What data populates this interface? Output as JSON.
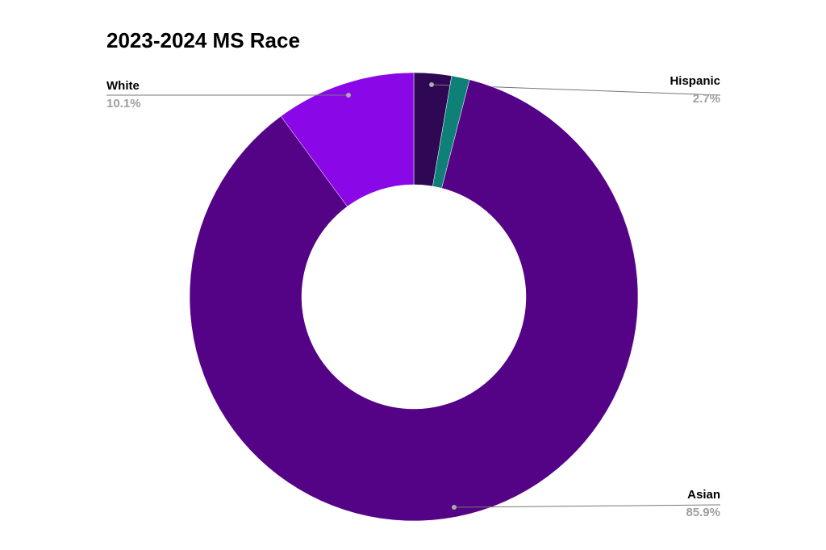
{
  "chart_data": {
    "type": "donut",
    "title": "2023-2024 MS Race",
    "categories": [
      "Hispanic",
      null,
      "Asian",
      "White"
    ],
    "values": [
      2.7,
      1.3,
      85.9,
      10.1
    ],
    "value_labels": [
      "2.7%",
      null,
      "85.9%",
      "10.1%"
    ],
    "colors": [
      "#2e0854",
      "#0f8077",
      "#540386",
      "#8a07e8"
    ]
  }
}
